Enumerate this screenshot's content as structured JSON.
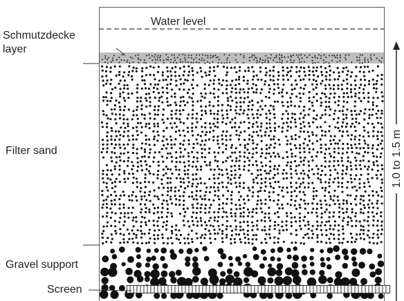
{
  "labels": {
    "water_level": "Water level",
    "schmutzdecke": [
      "Schmutzdecke",
      "layer"
    ],
    "filter_sand": "Filter sand",
    "gravel_support": "Gravel support",
    "screen": "Screen",
    "depth": "1.0 to 1.5 m"
  }
}
